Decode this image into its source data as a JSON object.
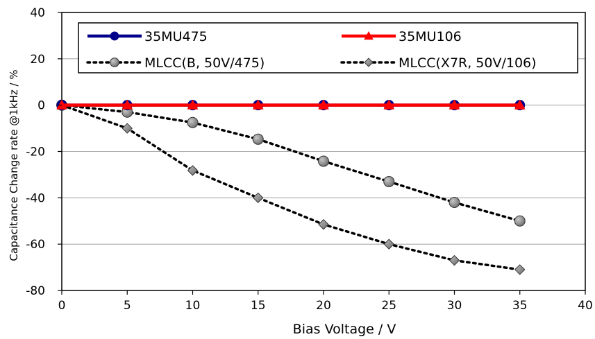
{
  "chart_data": {
    "type": "line",
    "title": "",
    "xlabel": "Bias Voltage / V",
    "ylabel": "Capacitance Change rate @1kHz / %",
    "xlim": [
      0,
      40
    ],
    "ylim": [
      -80,
      40
    ],
    "x_ticks": [
      0,
      5,
      10,
      15,
      20,
      25,
      30,
      35,
      40
    ],
    "y_ticks": [
      -80,
      -60,
      -40,
      -20,
      0,
      20,
      40
    ],
    "grid": "horizontal",
    "legend_position": "top",
    "series": [
      {
        "name": "35MU475",
        "color": "#00008b",
        "line": "solid",
        "marker": "circle",
        "x": [
          0,
          5,
          10,
          15,
          20,
          25,
          30,
          35
        ],
        "y": [
          0,
          0,
          0,
          0,
          0,
          0,
          0,
          0
        ]
      },
      {
        "name": "35MU106",
        "color": "#ff0000",
        "line": "solid",
        "marker": "triangle",
        "x": [
          0,
          5,
          10,
          15,
          20,
          25,
          30,
          35
        ],
        "y": [
          0,
          0,
          0,
          0,
          0,
          0,
          0,
          0
        ]
      },
      {
        "name": "MLCC(B, 50V/475)",
        "color": "#808080",
        "line": "dotted",
        "marker": "circle",
        "x": [
          0,
          5,
          10,
          15,
          20,
          25,
          30,
          35
        ],
        "y": [
          0,
          -3,
          -7.5,
          -14.7,
          -24.2,
          -33,
          -42,
          -50
        ]
      },
      {
        "name": "MLCC(X7R, 50V/106)",
        "color": "#808080",
        "line": "dotted",
        "marker": "diamond",
        "x": [
          0,
          5,
          10,
          15,
          20,
          25,
          30,
          35
        ],
        "y": [
          0,
          -10,
          -28.2,
          -40,
          -51.5,
          -60,
          -67,
          -71
        ]
      }
    ]
  }
}
